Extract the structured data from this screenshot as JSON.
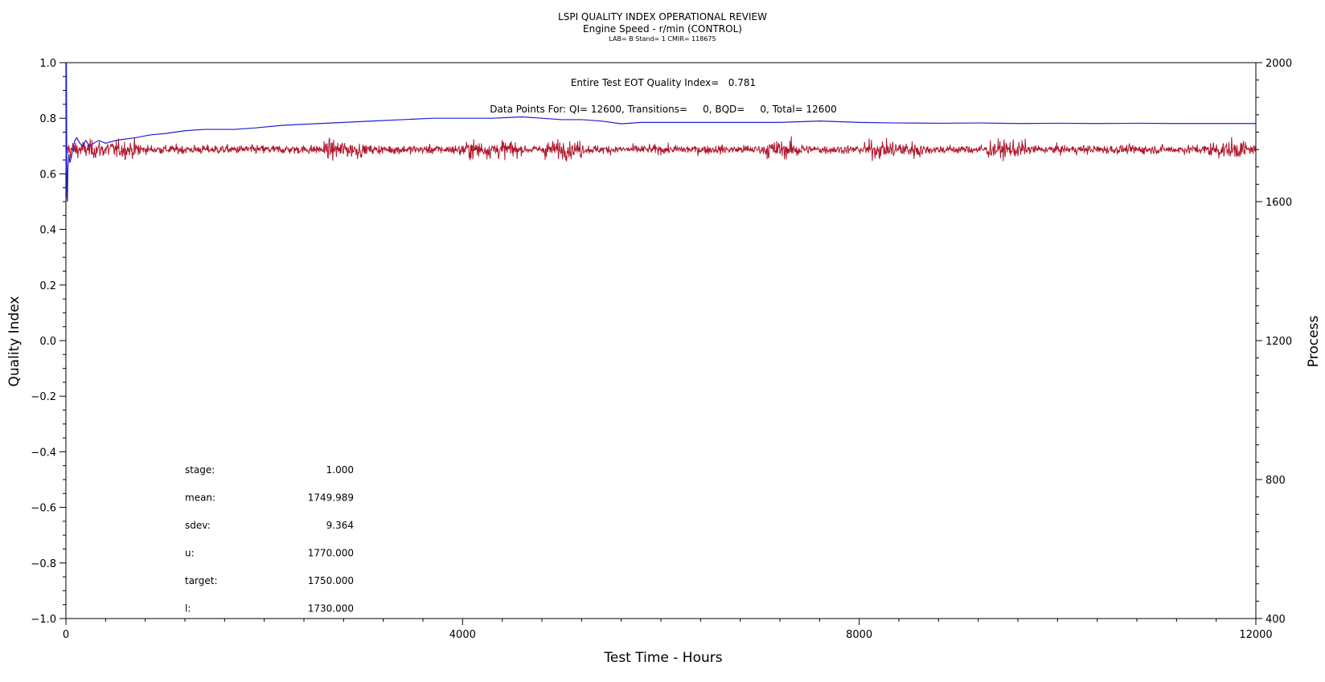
{
  "chart_data": {
    "type": "line",
    "title": "LSPI QUALITY INDEX OPERATIONAL REVIEW",
    "subtitle": "Engine Speed - r/min (CONTROL)",
    "subtitle2": "LAB= B Stand= 1 CMIR= 118675",
    "xlabel": "Test Time - Hours",
    "ylabel_left": "Quality Index",
    "ylabel_right": "Process",
    "xlim": [
      0,
      12000
    ],
    "ylim_left": [
      -1.0,
      1.0
    ],
    "ylim_right": [
      400,
      2000
    ],
    "x_ticks": [
      "0",
      "4000",
      "8000",
      "12000"
    ],
    "y_left_ticks": [
      "-1.0",
      "-0.8",
      "-0.6",
      "-0.4",
      "-0.2",
      "0.0",
      "0.2",
      "0.4",
      "0.6",
      "0.8",
      "1.0"
    ],
    "y_right_ticks": [
      "400",
      "800",
      "1200",
      "1600",
      "2000"
    ],
    "grid": false,
    "annotations": {
      "eot": "Entire Test EOT Quality Index=   0.781",
      "points": "Data Points For: QI= 12600, Transitions=     0, BQD=     0, Total= 12600"
    },
    "stats": [
      {
        "label": "stage:",
        "value": "1.000"
      },
      {
        "label": "mean:",
        "value": "1749.989"
      },
      {
        "label": "sdev:",
        "value": "9.364"
      },
      {
        "label": "u:",
        "value": "1770.000"
      },
      {
        "label": "target:",
        "value": "1750.000"
      },
      {
        "label": "l:",
        "value": "1730.000"
      }
    ],
    "series": [
      {
        "axis": "left",
        "color": "#1f1fd6",
        "x": [
          0,
          5,
          10,
          15,
          20,
          30,
          40,
          55,
          70,
          90,
          110,
          140,
          170,
          200,
          240,
          280,
          330,
          400,
          500,
          600,
          700,
          850,
          1000,
          1200,
          1400,
          1700,
          1900,
          2200,
          2500,
          2800,
          3100,
          3400,
          3700,
          4000,
          4300,
          4600,
          4800,
          5000,
          5200,
          5400,
          5600,
          5800,
          6000,
          6400,
          6800,
          7200,
          7600,
          8000,
          8400,
          8800,
          9200,
          9600,
          10000,
          10400,
          10800,
          11200,
          11600,
          12000
        ],
        "values": [
          0.6,
          1.0,
          0.52,
          0.5,
          0.62,
          0.67,
          0.64,
          0.66,
          0.69,
          0.72,
          0.73,
          0.71,
          0.7,
          0.72,
          0.7,
          0.71,
          0.72,
          0.71,
          0.72,
          0.725,
          0.73,
          0.74,
          0.745,
          0.755,
          0.76,
          0.76,
          0.765,
          0.775,
          0.78,
          0.785,
          0.79,
          0.795,
          0.8,
          0.8,
          0.8,
          0.805,
          0.8,
          0.795,
          0.795,
          0.79,
          0.78,
          0.785,
          0.785,
          0.785,
          0.785,
          0.785,
          0.79,
          0.785,
          0.783,
          0.782,
          0.783,
          0.781,
          0.782,
          0.781,
          0.782,
          0.781,
          0.781,
          0.781
        ]
      },
      {
        "axis": "right",
        "color": "#b0172c",
        "mean": 1749.989,
        "sdev": 9.364,
        "n": 12600,
        "x_range": [
          0,
          12000
        ]
      }
    ]
  }
}
